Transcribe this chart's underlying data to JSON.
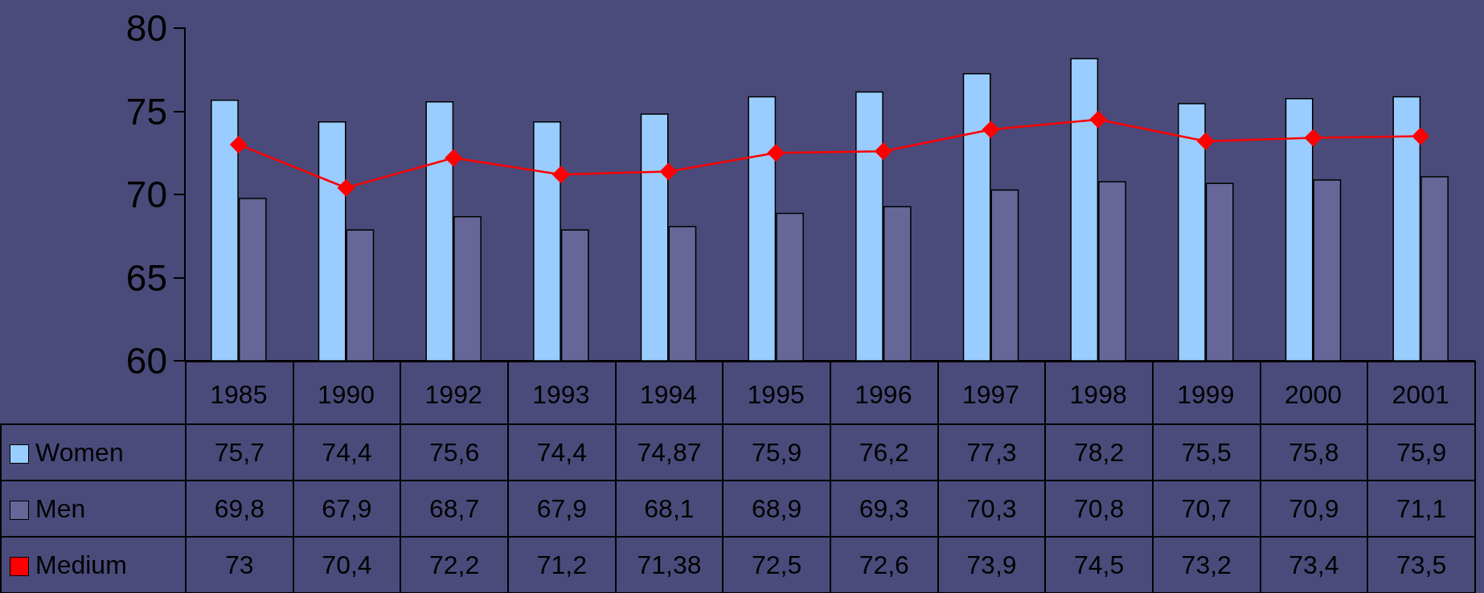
{
  "chart_data": {
    "type": "bar",
    "categories": [
      "1985",
      "1990",
      "1992",
      "1993",
      "1994",
      "1995",
      "1996",
      "1997",
      "1998",
      "1999",
      "2000",
      "2001"
    ],
    "series": [
      {
        "name": "Women",
        "color": "#99ccff",
        "values": [
          75.7,
          74.4,
          75.6,
          74.4,
          74.87,
          75.9,
          76.2,
          77.3,
          78.2,
          75.5,
          75.8,
          75.9
        ],
        "value_labels": [
          "75,7",
          "74,4",
          "75,6",
          "74,4",
          "74,87",
          "75,9",
          "76,2",
          "77,3",
          "78,2",
          "75,5",
          "75,8",
          "75,9"
        ]
      },
      {
        "name": "Men",
        "color": "#666699",
        "values": [
          69.8,
          67.9,
          68.7,
          67.9,
          68.1,
          68.9,
          69.3,
          70.3,
          70.8,
          70.7,
          70.9,
          71.1
        ],
        "value_labels": [
          "69,8",
          "67,9",
          "68,7",
          "67,9",
          "68,1",
          "68,9",
          "69,3",
          "70,3",
          "70,8",
          "70,7",
          "70,9",
          "71,1"
        ]
      },
      {
        "name": "Medium",
        "type": "line",
        "color": "#ff0000",
        "values": [
          73,
          70.4,
          72.2,
          71.2,
          71.38,
          72.5,
          72.6,
          73.9,
          74.5,
          73.2,
          73.4,
          73.5
        ],
        "value_labels": [
          "73",
          "70,4",
          "72,2",
          "71,2",
          "71,38",
          "72,5",
          "72,6",
          "73,9",
          "74,5",
          "73,2",
          "73,4",
          "73,5"
        ]
      }
    ],
    "ylim": [
      60,
      80
    ],
    "yticks": [
      60,
      65,
      70,
      75,
      80
    ],
    "legend": "bottom left",
    "marker": "diamond",
    "line_style": "solid"
  }
}
